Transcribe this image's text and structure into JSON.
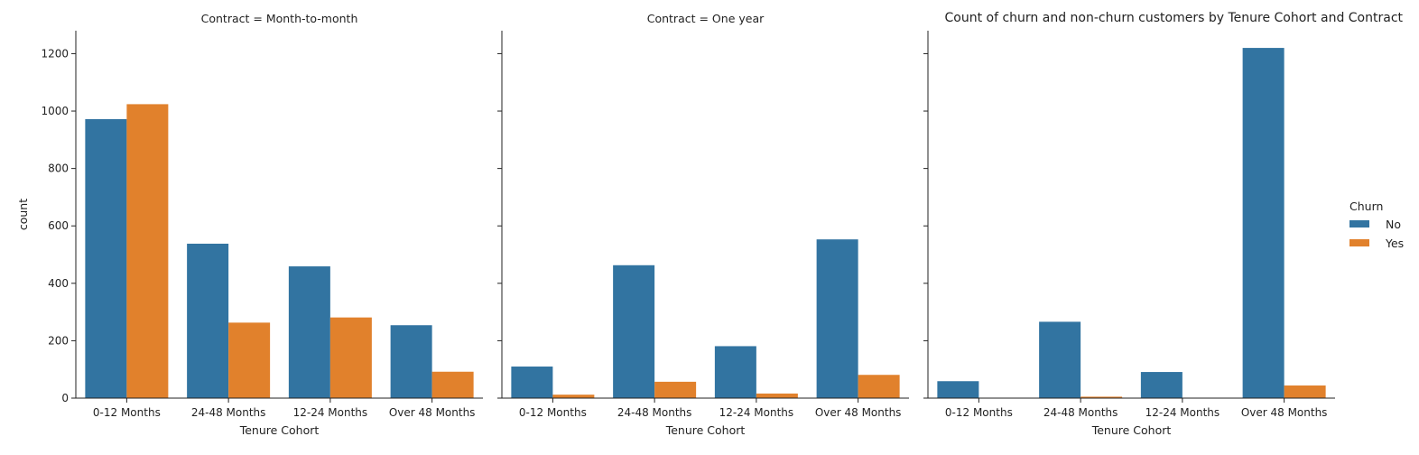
{
  "chart_data": {
    "type": "bar",
    "title": "Count of churn and non-churn customers by Tenure Cohort and Contract",
    "xlabel": "Tenure Cohort",
    "ylabel": "count",
    "ylim": [
      0,
      1280
    ],
    "yticks": [
      0,
      200,
      400,
      600,
      800,
      1000,
      1200
    ],
    "categories": [
      "0-12 Months",
      "24-48 Months",
      "12-24 Months",
      "Over 48 Months"
    ],
    "legend": {
      "title": "Churn",
      "placement": "center-right"
    },
    "colors": {
      "No": "#3274a1",
      "Yes": "#e1812c"
    },
    "facets": [
      {
        "title": "Contract = Month-to-month",
        "series": [
          {
            "name": "No",
            "values": [
              972,
              538,
              459,
              254
            ]
          },
          {
            "name": "Yes",
            "values": [
              1024,
              263,
              281,
              92
            ]
          }
        ]
      },
      {
        "title": "Contract = One year",
        "series": [
          {
            "name": "No",
            "values": [
              110,
              463,
              181,
              553
            ]
          },
          {
            "name": "Yes",
            "values": [
              12,
              57,
              16,
              81
            ]
          }
        ]
      },
      {
        "title": "",
        "series": [
          {
            "name": "No",
            "values": [
              59,
              266,
              91,
              1220
            ]
          },
          {
            "name": "Yes",
            "values": [
              0,
              5,
              0,
              44
            ]
          }
        ]
      }
    ]
  }
}
